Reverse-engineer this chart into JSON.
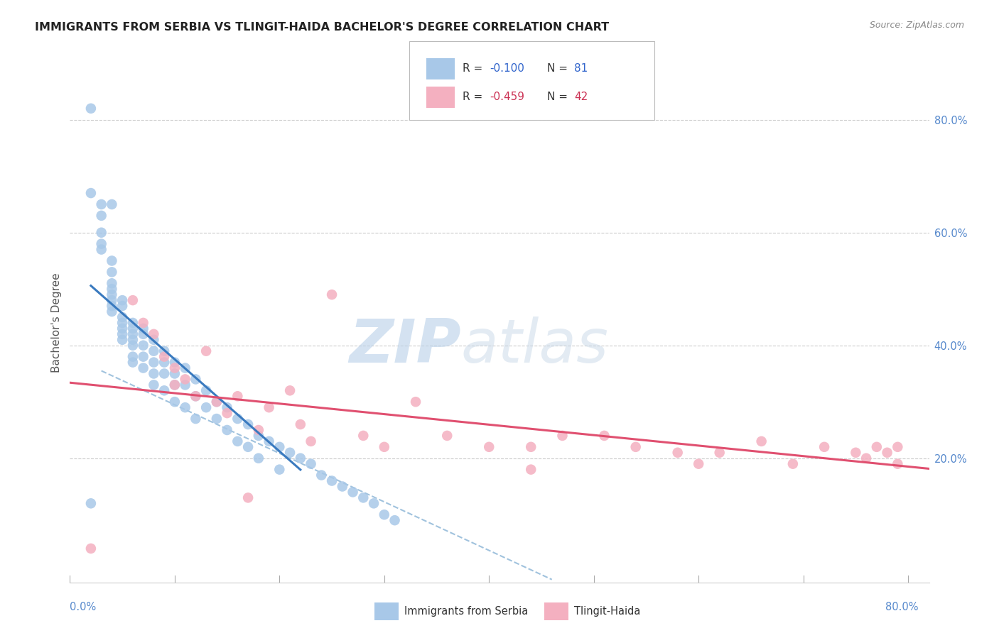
{
  "title": "IMMIGRANTS FROM SERBIA VS TLINGIT-HAIDA BACHELOR'S DEGREE CORRELATION CHART",
  "source": "Source: ZipAtlas.com",
  "ylabel": "Bachelor's Degree",
  "right_yticks": [
    "80.0%",
    "60.0%",
    "40.0%",
    "20.0%"
  ],
  "right_ytick_vals": [
    0.8,
    0.6,
    0.4,
    0.2
  ],
  "serbia_color": "#a8c8e8",
  "tlingit_color": "#f4b0c0",
  "trendline_serbia_color": "#3a7abf",
  "trendline_tlingit_color": "#e05070",
  "trendline_dashed_color": "#90b8d8",
  "serbia_x": [
    0.002,
    0.002,
    0.003,
    0.003,
    0.003,
    0.003,
    0.003,
    0.004,
    0.004,
    0.004,
    0.004,
    0.004,
    0.004,
    0.004,
    0.004,
    0.004,
    0.005,
    0.005,
    0.005,
    0.005,
    0.005,
    0.005,
    0.005,
    0.006,
    0.006,
    0.006,
    0.006,
    0.006,
    0.006,
    0.006,
    0.007,
    0.007,
    0.007,
    0.007,
    0.007,
    0.008,
    0.008,
    0.008,
    0.008,
    0.008,
    0.009,
    0.009,
    0.009,
    0.009,
    0.01,
    0.01,
    0.01,
    0.01,
    0.011,
    0.011,
    0.011,
    0.012,
    0.012,
    0.012,
    0.013,
    0.013,
    0.014,
    0.014,
    0.015,
    0.015,
    0.016,
    0.016,
    0.017,
    0.017,
    0.018,
    0.018,
    0.019,
    0.02,
    0.02,
    0.021,
    0.022,
    0.023,
    0.024,
    0.025,
    0.026,
    0.027,
    0.028,
    0.029,
    0.03,
    0.031,
    0.002
  ],
  "serbia_y": [
    0.82,
    0.67,
    0.65,
    0.63,
    0.6,
    0.58,
    0.57,
    0.55,
    0.53,
    0.51,
    0.5,
    0.49,
    0.48,
    0.47,
    0.46,
    0.65,
    0.48,
    0.47,
    0.45,
    0.44,
    0.43,
    0.42,
    0.41,
    0.44,
    0.43,
    0.42,
    0.41,
    0.4,
    0.38,
    0.37,
    0.43,
    0.42,
    0.4,
    0.38,
    0.36,
    0.41,
    0.39,
    0.37,
    0.35,
    0.33,
    0.39,
    0.37,
    0.35,
    0.32,
    0.37,
    0.35,
    0.33,
    0.3,
    0.36,
    0.33,
    0.29,
    0.34,
    0.31,
    0.27,
    0.32,
    0.29,
    0.3,
    0.27,
    0.29,
    0.25,
    0.27,
    0.23,
    0.26,
    0.22,
    0.24,
    0.2,
    0.23,
    0.22,
    0.18,
    0.21,
    0.2,
    0.19,
    0.17,
    0.16,
    0.15,
    0.14,
    0.13,
    0.12,
    0.1,
    0.09,
    0.12
  ],
  "tlingit_x": [
    0.002,
    0.006,
    0.007,
    0.008,
    0.009,
    0.01,
    0.01,
    0.011,
    0.012,
    0.013,
    0.014,
    0.015,
    0.016,
    0.018,
    0.019,
    0.021,
    0.023,
    0.025,
    0.028,
    0.03,
    0.033,
    0.036,
    0.04,
    0.044,
    0.047,
    0.051,
    0.054,
    0.058,
    0.062,
    0.066,
    0.069,
    0.072,
    0.075,
    0.076,
    0.077,
    0.078,
    0.079,
    0.079,
    0.017,
    0.022,
    0.044,
    0.06
  ],
  "tlingit_y": [
    0.04,
    0.48,
    0.44,
    0.42,
    0.38,
    0.36,
    0.33,
    0.34,
    0.31,
    0.39,
    0.3,
    0.28,
    0.31,
    0.25,
    0.29,
    0.32,
    0.23,
    0.49,
    0.24,
    0.22,
    0.3,
    0.24,
    0.22,
    0.22,
    0.24,
    0.24,
    0.22,
    0.21,
    0.21,
    0.23,
    0.19,
    0.22,
    0.21,
    0.2,
    0.22,
    0.21,
    0.19,
    0.22,
    0.13,
    0.26,
    0.18,
    0.19
  ],
  "xlim_max": 0.082,
  "ylim_min": -0.02,
  "ylim_max": 0.9
}
